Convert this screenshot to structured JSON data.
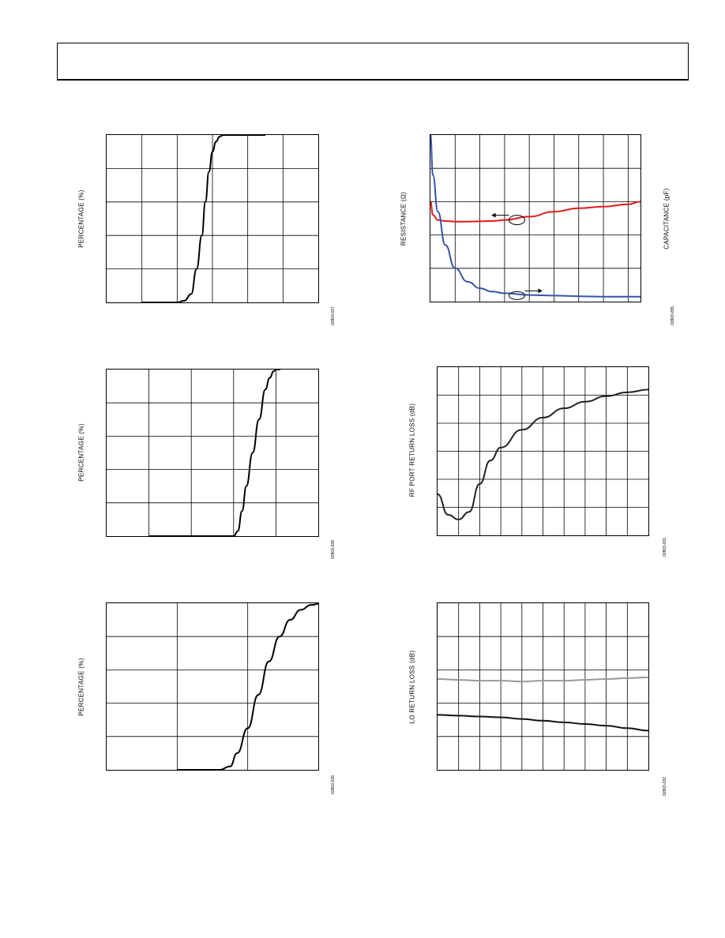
{
  "chart_data": [
    {
      "type": "line",
      "ylabel": "PERCENTAGE (%)",
      "code": "02803-027",
      "grid": true,
      "x": [
        0,
        0.5,
        1.0,
        1.2,
        1.4,
        1.55,
        1.7,
        1.8,
        1.9,
        2.0,
        2.1,
        2.2,
        2.3,
        2.5,
        3.0,
        3.5
      ],
      "series": [
        {
          "color": "#000000",
          "values": [
            0,
            0,
            0,
            1,
            5,
            20,
            40,
            60,
            78,
            90,
            96,
            99,
            100,
            100,
            100,
            100
          ]
        }
      ],
      "xlim": [
        -1,
        5
      ],
      "ylim": [
        0,
        100
      ]
    },
    {
      "type": "line",
      "ylabel": "PERCENTAGE (%)",
      "code": "02803-028",
      "grid": true,
      "x": [
        0,
        1.85,
        2.0,
        2.1,
        2.2,
        2.3,
        2.45,
        2.6,
        2.75,
        2.85,
        2.95,
        3.0,
        3.1
      ],
      "series": [
        {
          "color": "#000000",
          "values": [
            0,
            0,
            0,
            3,
            15,
            30,
            50,
            70,
            88,
            95,
            99,
            100,
            100
          ]
        }
      ],
      "xlim": [
        -1,
        4
      ],
      "ylim": [
        0,
        100
      ]
    },
    {
      "type": "line",
      "ylabel": "PERCENTAGE (%)",
      "code": "02803-029",
      "grid": true,
      "x": [
        0,
        0.6,
        0.75,
        0.85,
        1.0,
        1.15,
        1.3,
        1.45,
        1.6,
        1.75,
        1.9,
        2.05,
        2.2
      ],
      "series": [
        {
          "color": "#000000",
          "values": [
            0,
            0,
            2,
            10,
            25,
            45,
            65,
            80,
            90,
            96,
            99,
            100,
            100
          ]
        }
      ],
      "xlim": [
        -1,
        2
      ],
      "ylim": [
        0,
        100
      ]
    },
    {
      "type": "line",
      "ylabel": "RESISTANCE (Ω)",
      "ylabel_right": "CAPACITANCE (pF)",
      "code": "02803-055",
      "grid": true,
      "x": [
        0,
        0.1,
        0.3,
        0.6,
        1,
        1.5,
        2,
        2.5,
        3,
        4,
        5,
        6,
        7,
        8,
        8.5
      ],
      "series": [
        {
          "color": "#e31b1b",
          "values": [
            3.0,
            2.6,
            2.45,
            2.42,
            2.4,
            2.4,
            2.41,
            2.42,
            2.45,
            2.55,
            2.7,
            2.8,
            2.85,
            2.92,
            3.0
          ]
        },
        {
          "color": "#3355aa",
          "values": [
            5.0,
            3.8,
            2.7,
            1.7,
            1.0,
            0.6,
            0.4,
            0.3,
            0.25,
            0.2,
            0.18,
            0.16,
            0.15,
            0.15,
            0.15
          ]
        }
      ],
      "xlim": [
        0,
        8.5
      ],
      "ylim": [
        0,
        5
      ]
    },
    {
      "type": "line",
      "ylabel": "RF PORT RETURN LOSS (dB)",
      "code": "02803-031",
      "grid": true,
      "x": [
        0,
        0.5,
        1,
        1.5,
        2,
        2.5,
        3,
        4,
        5,
        6,
        7,
        8,
        9,
        10
      ],
      "series": [
        {
          "color": "#222222",
          "values": [
            -25.6,
            -27.8,
            -28.3,
            -27.5,
            -24.5,
            -22.0,
            -20.6,
            -18.7,
            -17.4,
            -16.4,
            -15.7,
            -15.1,
            -14.7,
            -14.4
          ]
        }
      ],
      "xlim": [
        0,
        10
      ],
      "ylim": [
        -30,
        -12
      ]
    },
    {
      "type": "line",
      "ylabel": "LO RETURN LOSS (dB)",
      "code": "02803-032",
      "grid": true,
      "x": [
        0,
        1,
        2,
        3,
        4,
        5,
        6,
        7,
        8,
        9,
        10
      ],
      "series": [
        {
          "color": "#999999",
          "values": [
            -14.1,
            -14.2,
            -14.3,
            -14.3,
            -14.4,
            -14.3,
            -14.3,
            -14.2,
            -14.1,
            -14.0,
            -13.9
          ]
        },
        {
          "color": "#111111",
          "values": [
            -18.4,
            -18.5,
            -18.6,
            -18.7,
            -18.9,
            -19.1,
            -19.3,
            -19.5,
            -19.7,
            -20.0,
            -20.3
          ]
        }
      ],
      "xlim": [
        0,
        10
      ],
      "ylim": [
        -25,
        -5
      ]
    }
  ]
}
